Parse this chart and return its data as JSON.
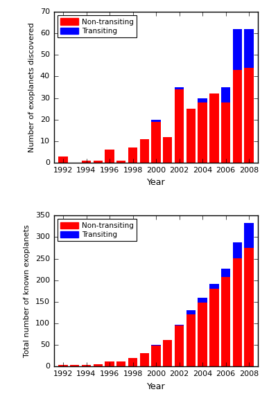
{
  "years": [
    1992,
    1993,
    1994,
    1995,
    1996,
    1997,
    1998,
    1999,
    2000,
    2001,
    2002,
    2003,
    2004,
    2005,
    2006,
    2007,
    2008
  ],
  "upper_nontransiting": [
    3,
    0,
    1,
    1,
    6,
    1,
    7,
    11,
    19,
    12,
    34,
    25,
    28,
    32,
    28,
    43,
    44
  ],
  "upper_transiting": [
    0,
    0,
    0,
    0,
    0,
    0,
    0,
    0,
    1,
    0,
    1,
    0,
    2,
    0,
    7,
    19,
    18
  ],
  "lower_nontransiting": [
    3,
    3,
    4,
    5,
    11,
    12,
    19,
    30,
    49,
    61,
    95,
    120,
    148,
    180,
    208,
    251,
    275
  ],
  "lower_transiting": [
    0,
    0,
    0,
    0,
    0,
    0,
    0,
    0,
    1,
    1,
    2,
    10,
    12,
    12,
    18,
    37,
    57
  ],
  "upper_ylim": [
    0,
    70
  ],
  "upper_yticks": [
    0,
    10,
    20,
    30,
    40,
    50,
    60,
    70
  ],
  "lower_ylim": [
    0,
    350
  ],
  "lower_yticks": [
    0,
    50,
    100,
    150,
    200,
    250,
    300,
    350
  ],
  "xticks": [
    1992,
    1994,
    1996,
    1998,
    2000,
    2002,
    2004,
    2006,
    2008
  ],
  "bar_color_red": "#ff0000",
  "bar_color_blue": "#0000ff",
  "upper_ylabel": "Number of exoplanets discovered",
  "lower_ylabel": "Total number of known exoplanets",
  "xlabel": "Year",
  "legend_nontransiting": "Non-transiting",
  "legend_transiting": "Transiting",
  "bar_width": 0.8,
  "bg_color": "#e8e8e8"
}
